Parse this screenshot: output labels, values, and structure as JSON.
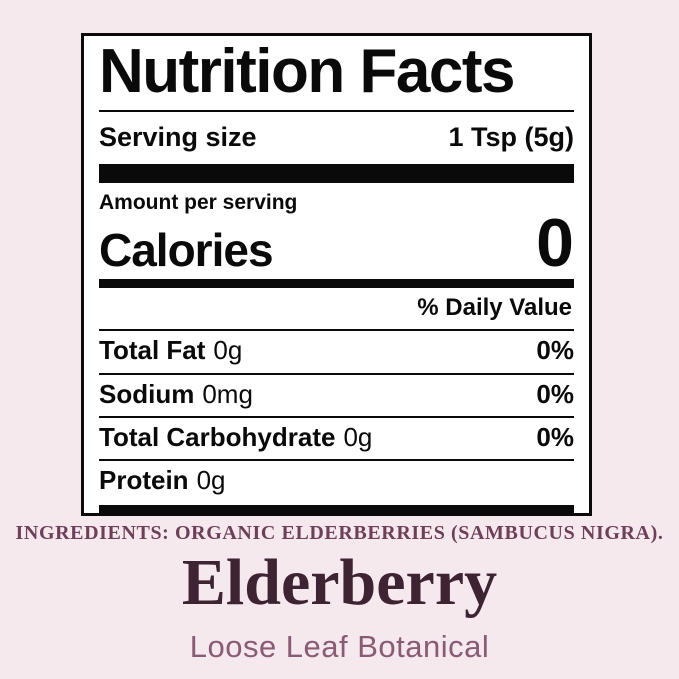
{
  "colors": {
    "background": "#f5e9ee",
    "panel_background": "#ffffff",
    "panel_ink": "#0a0a0a",
    "ingredients_text": "#6d3f58",
    "product_name_text": "#3e2433",
    "subtitle_text": "#8a5b74"
  },
  "label": {
    "title": "Nutrition Facts",
    "serving_size_label": "Serving size",
    "serving_size_value": "1 Tsp (5g)",
    "amount_per_serving": "Amount per serving",
    "calories_label": "Calories",
    "calories_value": "0",
    "daily_value_header": "% Daily Value",
    "rows": [
      {
        "name": "Total Fat",
        "amount": "0g",
        "dv": "0%"
      },
      {
        "name": "Sodium",
        "amount": "0mg",
        "dv": "0%"
      },
      {
        "name": "Total Carbohydrate",
        "amount": "0g",
        "dv": "0%"
      },
      {
        "name": "Protein",
        "amount": "0g",
        "dv": ""
      }
    ]
  },
  "footer": {
    "ingredients": "INGREDIENTS: ORGANIC ELDERBERRIES (SAMBUCUS NIGRA).",
    "product_name": "Elderberry",
    "subtitle": "Loose Leaf Botanical"
  }
}
